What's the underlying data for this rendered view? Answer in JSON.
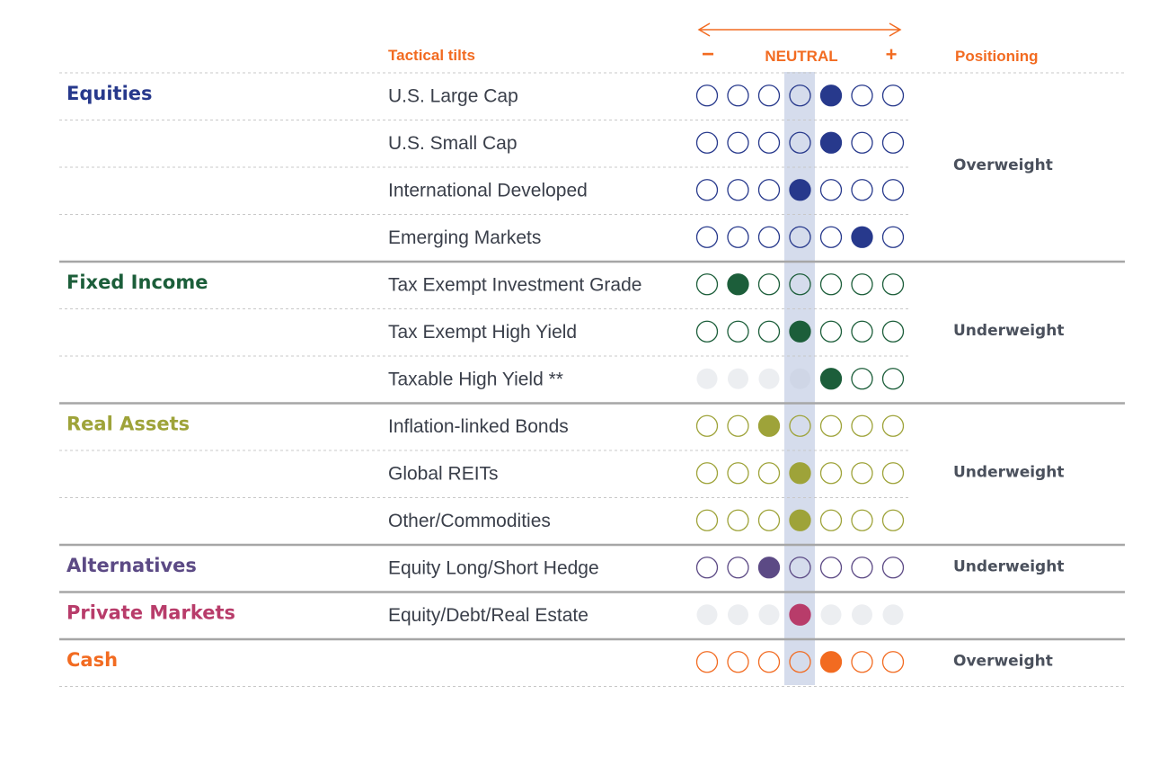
{
  "headers": {
    "tactical_tilts": "Tactical tilts",
    "minus": "−",
    "neutral": "NEUTRAL",
    "plus": "+",
    "positioning": "Positioning"
  },
  "colors": {
    "header": "#f26b21",
    "neutral_band": "#d5dcec",
    "inactive_dot": "#eceef1",
    "divider": "#a6a6a6",
    "dotted": "#c8c8c8"
  },
  "chart_data": {
    "type": "table",
    "scale": {
      "positions": 7,
      "neutral_index": 3
    },
    "groups": [
      {
        "name": "Equities",
        "color": "#27398c",
        "positioning": "Overweight",
        "rows": [
          {
            "label": "U.S. Large Cap",
            "tilt": 4,
            "active": true
          },
          {
            "label": "U.S. Small Cap",
            "tilt": 4,
            "active": true
          },
          {
            "label": "International Developed",
            "tilt": 3,
            "active": true
          },
          {
            "label": "Emerging Markets",
            "tilt": 5,
            "active": true
          }
        ]
      },
      {
        "name": "Fixed Income",
        "color": "#1c5e3a",
        "positioning": "Underweight",
        "rows": [
          {
            "label": "Tax Exempt Investment Grade",
            "tilt": 1,
            "active": true
          },
          {
            "label": "Tax Exempt High Yield",
            "tilt": 3,
            "active": true
          },
          {
            "label": "Taxable High Yield **",
            "tilt": 4,
            "active": true,
            "first_valid_index": 4
          }
        ]
      },
      {
        "name": "Real Assets",
        "color": "#9ea339",
        "positioning": "Underweight",
        "rows": [
          {
            "label": "Inflation-linked Bonds",
            "tilt": 2,
            "active": true
          },
          {
            "label": "Global REITs",
            "tilt": 3,
            "active": true
          },
          {
            "label": "Other/Commodities",
            "tilt": 3,
            "active": true
          }
        ]
      },
      {
        "name": "Alternatives",
        "color": "#5c4a85",
        "positioning": "Underweight",
        "rows": [
          {
            "label": "Equity Long/Short Hedge",
            "tilt": 2,
            "active": true
          }
        ]
      },
      {
        "name": "Private Markets",
        "color": "#b83c6a",
        "positioning": "",
        "rows": [
          {
            "label": "Equity/Debt/Real Estate",
            "tilt": 3,
            "active": false
          }
        ]
      },
      {
        "name": "Cash",
        "color": "#f26b21",
        "positioning": "Overweight",
        "rows": [
          {
            "label": "",
            "tilt": 4,
            "active": true
          }
        ]
      }
    ]
  }
}
